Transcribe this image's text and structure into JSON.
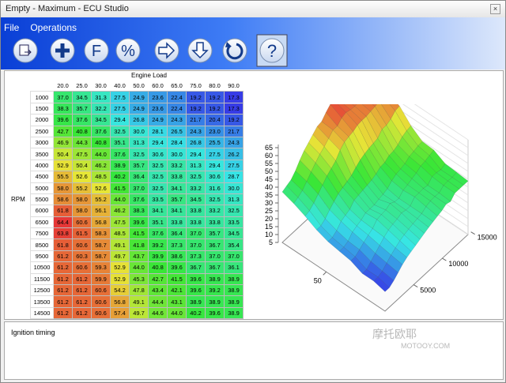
{
  "window": {
    "title": "Empty - Maximum - ECU Studio"
  },
  "menu": [
    "File",
    "Operations"
  ],
  "toolbar": {
    "glyphs": [
      "F",
      "%",
      "?"
    ]
  },
  "table": {
    "x_label": "Engine Load",
    "y_label": "RPM",
    "columns": [
      "20.0",
      "25.0",
      "30.0",
      "40.0",
      "50.0",
      "60.0",
      "65.0",
      "75.0",
      "80.0",
      "90.0"
    ],
    "rows": [
      {
        "rpm": "1000",
        "values": [
          "37.0",
          "34.5",
          "31.3",
          "27.5",
          "24.9",
          "23.6",
          "22.4",
          "19.2",
          "19.2",
          "17.3"
        ]
      },
      {
        "rpm": "1500",
        "values": [
          "38.3",
          "35.7",
          "32.2",
          "27.5",
          "24.9",
          "23.6",
          "22.4",
          "19.2",
          "19.2",
          "17.3"
        ]
      },
      {
        "rpm": "2000",
        "values": [
          "39.6",
          "37.6",
          "34.5",
          "29.4",
          "26.8",
          "24.9",
          "24.3",
          "21.7",
          "20.4",
          "19.2"
        ]
      },
      {
        "rpm": "2500",
        "values": [
          "42.7",
          "40.8",
          "37.6",
          "32.5",
          "30.0",
          "28.1",
          "26.5",
          "24.3",
          "23.0",
          "21.7"
        ]
      },
      {
        "rpm": "3000",
        "values": [
          "46.9",
          "44.3",
          "40.8",
          "35.1",
          "31.3",
          "29.4",
          "28.4",
          "26.8",
          "25.5",
          "24.3"
        ]
      },
      {
        "rpm": "3500",
        "values": [
          "50.4",
          "47.5",
          "44.0",
          "37.6",
          "32.5",
          "30.6",
          "30.0",
          "29.4",
          "27.5",
          "26.2"
        ]
      },
      {
        "rpm": "4000",
        "values": [
          "52.9",
          "50.4",
          "46.2",
          "38.9",
          "35.7",
          "32.5",
          "33.2",
          "31.3",
          "29.4",
          "27.5"
        ]
      },
      {
        "rpm": "4500",
        "values": [
          "55.5",
          "52.6",
          "48.5",
          "40.2",
          "36.4",
          "32.5",
          "33.8",
          "32.5",
          "30.6",
          "28.7"
        ]
      },
      {
        "rpm": "5000",
        "values": [
          "58.0",
          "55.2",
          "52.6",
          "41.5",
          "37.0",
          "32.5",
          "34.1",
          "33.2",
          "31.6",
          "30.0"
        ]
      },
      {
        "rpm": "5500",
        "values": [
          "58.6",
          "58.0",
          "55.2",
          "44.0",
          "37.6",
          "33.5",
          "35.7",
          "34.5",
          "32.5",
          "31.3"
        ]
      },
      {
        "rpm": "6000",
        "values": [
          "61.8",
          "58.0",
          "56.1",
          "46.2",
          "38.3",
          "34.1",
          "34.1",
          "33.8",
          "33.2",
          "32.5"
        ]
      },
      {
        "rpm": "6500",
        "values": [
          "64.4",
          "60.6",
          "56.8",
          "47.5",
          "39.6",
          "35.1",
          "33.8",
          "33.8",
          "33.8",
          "33.5"
        ]
      },
      {
        "rpm": "7500",
        "values": [
          "63.8",
          "61.5",
          "58.3",
          "48.5",
          "41.5",
          "37.6",
          "36.4",
          "37.0",
          "35.7",
          "34.5"
        ]
      },
      {
        "rpm": "8500",
        "values": [
          "61.8",
          "60.6",
          "58.7",
          "49.1",
          "41.8",
          "39.2",
          "37.3",
          "37.0",
          "36.7",
          "35.4"
        ]
      },
      {
        "rpm": "9500",
        "values": [
          "61.2",
          "60.3",
          "58.7",
          "49.7",
          "43.7",
          "39.9",
          "38.6",
          "37.3",
          "37.0",
          "37.0"
        ]
      },
      {
        "rpm": "10500",
        "values": [
          "61.2",
          "60.6",
          "59.3",
          "52.9",
          "44.0",
          "40.8",
          "39.6",
          "36.7",
          "36.7",
          "36.1"
        ]
      },
      {
        "rpm": "11500",
        "values": [
          "61.2",
          "61.2",
          "59.9",
          "52.9",
          "45.3",
          "42.7",
          "41.5",
          "39.6",
          "38.9",
          "38.9"
        ]
      },
      {
        "rpm": "12500",
        "values": [
          "61.2",
          "61.2",
          "60.6",
          "54.2",
          "47.8",
          "43.4",
          "42.1",
          "39.6",
          "39.2",
          "38.9"
        ]
      },
      {
        "rpm": "13500",
        "values": [
          "61.2",
          "61.2",
          "60.6",
          "56.8",
          "49.1",
          "44.4",
          "43.1",
          "38.9",
          "38.9",
          "38.9"
        ]
      },
      {
        "rpm": "14500",
        "values": [
          "61.2",
          "61.2",
          "60.6",
          "57.4",
          "49.7",
          "44.6",
          "44.0",
          "40.2",
          "39.6",
          "38.9"
        ]
      }
    ]
  },
  "plot": {
    "zticks": [
      5,
      10,
      15,
      20,
      25,
      30,
      35,
      40,
      45,
      50,
      55,
      60,
      65
    ],
    "rpm_ticks": [
      5000,
      10000,
      15000
    ],
    "load_ticks": [
      50
    ]
  },
  "status": "Ignition timing",
  "watermark": {
    "brand": "摩托欧耶",
    "site": "MOTOOY.COM"
  }
}
